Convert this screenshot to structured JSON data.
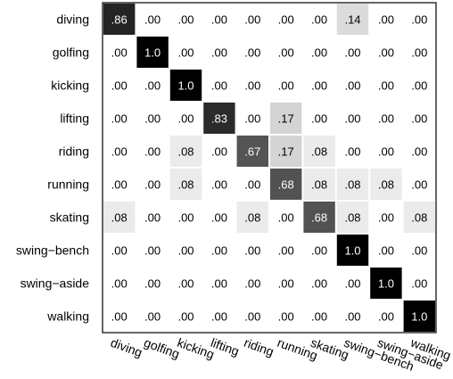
{
  "chart_data": {
    "type": "heatmap",
    "title": "",
    "xlabel": "",
    "ylabel": "",
    "rows": [
      "diving",
      "golfing",
      "kicking",
      "lifting",
      "riding",
      "running",
      "skating",
      "swing−bench",
      "swing−aside",
      "walking"
    ],
    "columns": [
      "diving",
      "golfing",
      "kicking",
      "lifting",
      "riding",
      "running",
      "skating",
      "swing−bench",
      "swing−aside",
      "walking"
    ],
    "values": [
      [
        0.86,
        0.0,
        0.0,
        0.0,
        0.0,
        0.0,
        0.0,
        0.14,
        0.0,
        0.0
      ],
      [
        0.0,
        1.0,
        0.0,
        0.0,
        0.0,
        0.0,
        0.0,
        0.0,
        0.0,
        0.0
      ],
      [
        0.0,
        0.0,
        1.0,
        0.0,
        0.0,
        0.0,
        0.0,
        0.0,
        0.0,
        0.0
      ],
      [
        0.0,
        0.0,
        0.0,
        0.83,
        0.0,
        0.17,
        0.0,
        0.0,
        0.0,
        0.0
      ],
      [
        0.0,
        0.0,
        0.08,
        0.0,
        0.67,
        0.17,
        0.08,
        0.0,
        0.0,
        0.0
      ],
      [
        0.0,
        0.0,
        0.08,
        0.0,
        0.0,
        0.68,
        0.08,
        0.08,
        0.08,
        0.0
      ],
      [
        0.08,
        0.0,
        0.0,
        0.0,
        0.08,
        0.0,
        0.68,
        0.08,
        0.0,
        0.08
      ],
      [
        0.0,
        0.0,
        0.0,
        0.0,
        0.0,
        0.0,
        0.0,
        1.0,
        0.0,
        0.0
      ],
      [
        0.0,
        0.0,
        0.0,
        0.0,
        0.0,
        0.0,
        0.0,
        0.0,
        1.0,
        0.0
      ],
      [
        0.0,
        0.0,
        0.0,
        0.0,
        0.0,
        0.0,
        0.0,
        0.0,
        0.0,
        1.0
      ]
    ],
    "labels": [
      [
        ".86",
        ".00",
        ".00",
        ".00",
        ".00",
        ".00",
        ".00",
        ".14",
        ".00",
        ".00"
      ],
      [
        ".00",
        "1.0",
        ".00",
        ".00",
        ".00",
        ".00",
        ".00",
        ".00",
        ".00",
        ".00"
      ],
      [
        ".00",
        ".00",
        "1.0",
        ".00",
        ".00",
        ".00",
        ".00",
        ".00",
        ".00",
        ".00"
      ],
      [
        ".00",
        ".00",
        ".00",
        ".83",
        ".00",
        ".17",
        ".00",
        ".00",
        ".00",
        ".00"
      ],
      [
        ".00",
        ".00",
        ".08",
        ".00",
        ".67",
        ".17",
        ".08",
        ".00",
        ".00",
        ".00"
      ],
      [
        ".00",
        ".00",
        ".08",
        ".00",
        ".00",
        ".68",
        ".08",
        ".08",
        ".08",
        ".00"
      ],
      [
        ".08",
        ".00",
        ".00",
        ".00",
        ".08",
        ".00",
        ".68",
        ".08",
        ".00",
        ".08"
      ],
      [
        ".00",
        ".00",
        ".00",
        ".00",
        ".00",
        ".00",
        ".00",
        "1.0",
        ".00",
        ".00"
      ],
      [
        ".00",
        ".00",
        ".00",
        ".00",
        ".00",
        ".00",
        ".00",
        ".00",
        "1.0",
        ".00"
      ],
      [
        ".00",
        ".00",
        ".00",
        ".00",
        ".00",
        ".00",
        ".00",
        ".00",
        ".00",
        "1.0"
      ]
    ],
    "colorscale": "white-to-black",
    "value_range": [
      0,
      1
    ],
    "grid": false
  }
}
